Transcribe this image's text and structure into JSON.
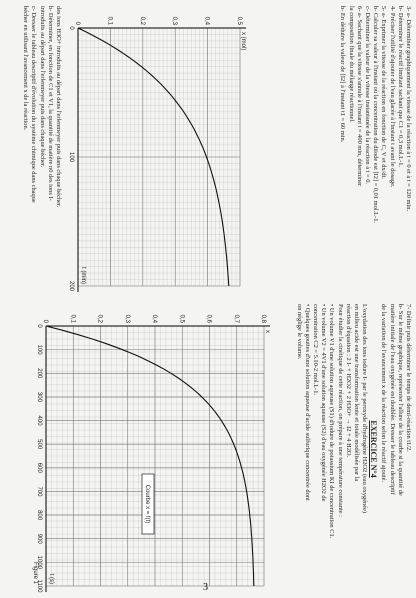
{
  "left_page": {
    "text_top": [
      "3- a- Déterminer graphiquement la vitesse de la réaction à t = 0 et à t = 120 min.",
      "b- Déterminer le réactif limitant sachant que C1 = 0,3 mol.L-1.",
      "4- Préciser l'utilité d'ajouter de l'eau glacée à l'instant t avant le dosage.",
      "5- a- Exprimer la vitesse de la réaction en fonction de C, V et dx/dt.",
      "b- Calculer sa valeur à l'instant où la concentration du diiode est [I2] = 0,01 mol.L-1.",
      "c- Déterminer la valeur de la vitesse instantanée de la réaction à t = 0.",
      "6- a- Sachant que la vitesse s'annule à l'instant t = 400 min, déterminer",
      "la composition finale du mélange réactionnel.",
      "b- En déduire la valeur de [I2] à l'instant t1 = 60 min."
    ],
    "graph": {
      "y_label": "x (mol)",
      "x_label": "t (min)",
      "yticks": [
        0,
        {
          "value": 0.1,
          "label": "0,1"
        },
        {
          "value": 0.2,
          "label": "0,2"
        },
        {
          "value": 0.3,
          "label": "0,3"
        },
        {
          "value": 0.4,
          "label": "0,4"
        },
        {
          "value": 0.5,
          "label": "0,5"
        }
      ],
      "xticks": [
        0,
        100,
        200
      ]
    },
    "text_bottom": [
      "des ions H3O+ introduits au départ dans l'erlenmeyer puis dans chaque bécher.",
      "b- Déterminer, en fonction de C1 et V1, la quantité de matière n0 des ions I-",
      "introduits au départ dans l'erlenmeyer puis dans chaque bécher.",
      "c- Dresser le tableau descriptif d'évolution du système chimique dans chaque",
      "bécher en utilisant l'avancement x de la réaction."
    ]
  },
  "right_page": {
    "text_top": [
      "7- Définir puis déterminer le temps de demi-réaction t1/2.",
      "b- Sur le même graphique, représenter l'allure de la courbe si la quantité de",
      "matière initiale de l'eau oxygénée est doublée. Dresser le tableau descriptif",
      "de la variation de l'avancement x de la réaction selon le réactif ajouté."
    ],
    "heading": "EXERCICE N°4",
    "text_after": [
      "L'oxydation des ions iodure I- par le peroxyde d'hydrogène H2O2 (eau oxygénée)",
      "en milieu acide est une transformation lente et totale modélisée par la",
      "réaction d'équation : 2 I- + H2O2 + 2 H3O+ → I2 + 4 H2O.",
      "Pour étudier la cinétique de cette réaction, on prépare à une température constante :",
      "• Un volume V1 d'une solution aqueuse (S1) d'iodure de potassium KI de concentration C1.",
      "• Un volume V2 = 4V1 d'une solution aqueuse (S2) d'eau oxygénée H2O2 de",
      "concentration C2 = 5.10-2 mol.L-1.",
      "• Quelques gouttes d'une solution aqueuse d'acide sulfurique concentrée dont",
      "on néglige le volume."
    ],
    "graph": {
      "y_label": "x",
      "x_label": "t (s)",
      "curve_label": "Courbe x = f(t)",
      "figure": "Figure 1",
      "yticks": [
        0,
        {
          "value": 0.1,
          "label": "0,1"
        },
        {
          "value": 0.2,
          "label": "0,2"
        },
        {
          "value": 0.3,
          "label": "0,3"
        },
        {
          "value": 0.4,
          "label": "0,4"
        },
        {
          "value": 0.5,
          "label": "0,5"
        },
        {
          "value": 0.6,
          "label": "0,6"
        },
        {
          "value": 0.7,
          "label": "0,7"
        },
        {
          "value": 0.8,
          "label": "0,8"
        }
      ],
      "xticks": [
        0,
        100,
        200,
        300,
        400,
        500,
        600,
        700,
        800,
        900,
        1000,
        1100
      ]
    }
  },
  "page_number": "3"
}
